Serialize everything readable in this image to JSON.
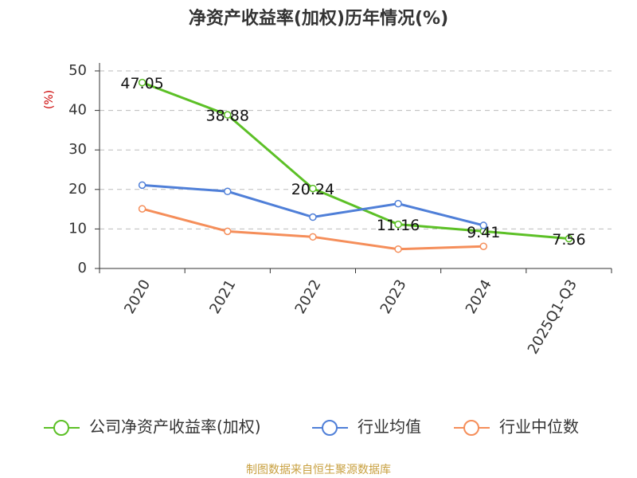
{
  "chart_data": {
    "type": "line",
    "title": "净资产收益率(加权)历年情况(%)",
    "y_label": "(%)",
    "categories": [
      "2020",
      "2021",
      "2022",
      "2023",
      "2024",
      "2025Q1-Q3"
    ],
    "series": [
      {
        "name": "公司净资产收益率(加权)",
        "color": "#5cc026",
        "values": [
          47.05,
          38.88,
          20.24,
          11.16,
          9.41,
          7.56
        ],
        "labels": true
      },
      {
        "name": "行业均值",
        "color": "#4f7fd8",
        "values": [
          21.1,
          19.5,
          13.0,
          16.4,
          10.9,
          null
        ]
      },
      {
        "name": "行业中位数",
        "color": "#f58e5a",
        "values": [
          15.1,
          9.4,
          8.0,
          4.9,
          5.6,
          null
        ]
      }
    ],
    "ylim": [
      0,
      50
    ],
    "yticks": [
      0,
      10,
      20,
      30,
      40,
      50
    ],
    "grid": true,
    "source": "制图数据来自恒生聚源数据库"
  }
}
